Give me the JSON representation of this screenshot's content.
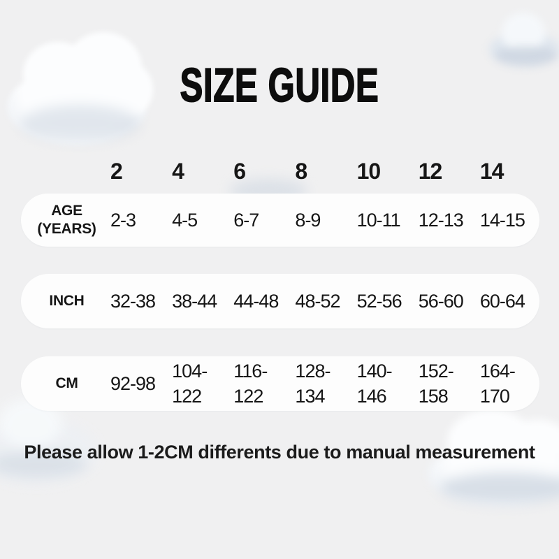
{
  "colors": {
    "bg": "#f0f0f1",
    "pill": "#fdfdfd",
    "text": "#161616",
    "title": "#0d0d0d",
    "note": "#1b1b1b"
  },
  "chart_data": {
    "type": "table",
    "title": "SIZE GUIDE",
    "header": [
      "2",
      "4",
      "6",
      "8",
      "10",
      "12",
      "14"
    ],
    "rows": [
      {
        "label": "AGE (YEARS)",
        "values": [
          "2-3",
          "4-5",
          "6-7",
          "8-9",
          "10-11",
          "12-13",
          "14-15"
        ]
      },
      {
        "label": "INCH",
        "values": [
          "32-38",
          "38-44",
          "44-48",
          "48-52",
          "52-56",
          "56-60",
          "60-64"
        ]
      },
      {
        "label": "CM",
        "values": [
          "92-98",
          "104-122",
          "116-122",
          "128-134",
          "140-146",
          "152-158",
          "164-170"
        ]
      }
    ],
    "note": "Please allow 1-2CM differents due to manual measurement"
  }
}
